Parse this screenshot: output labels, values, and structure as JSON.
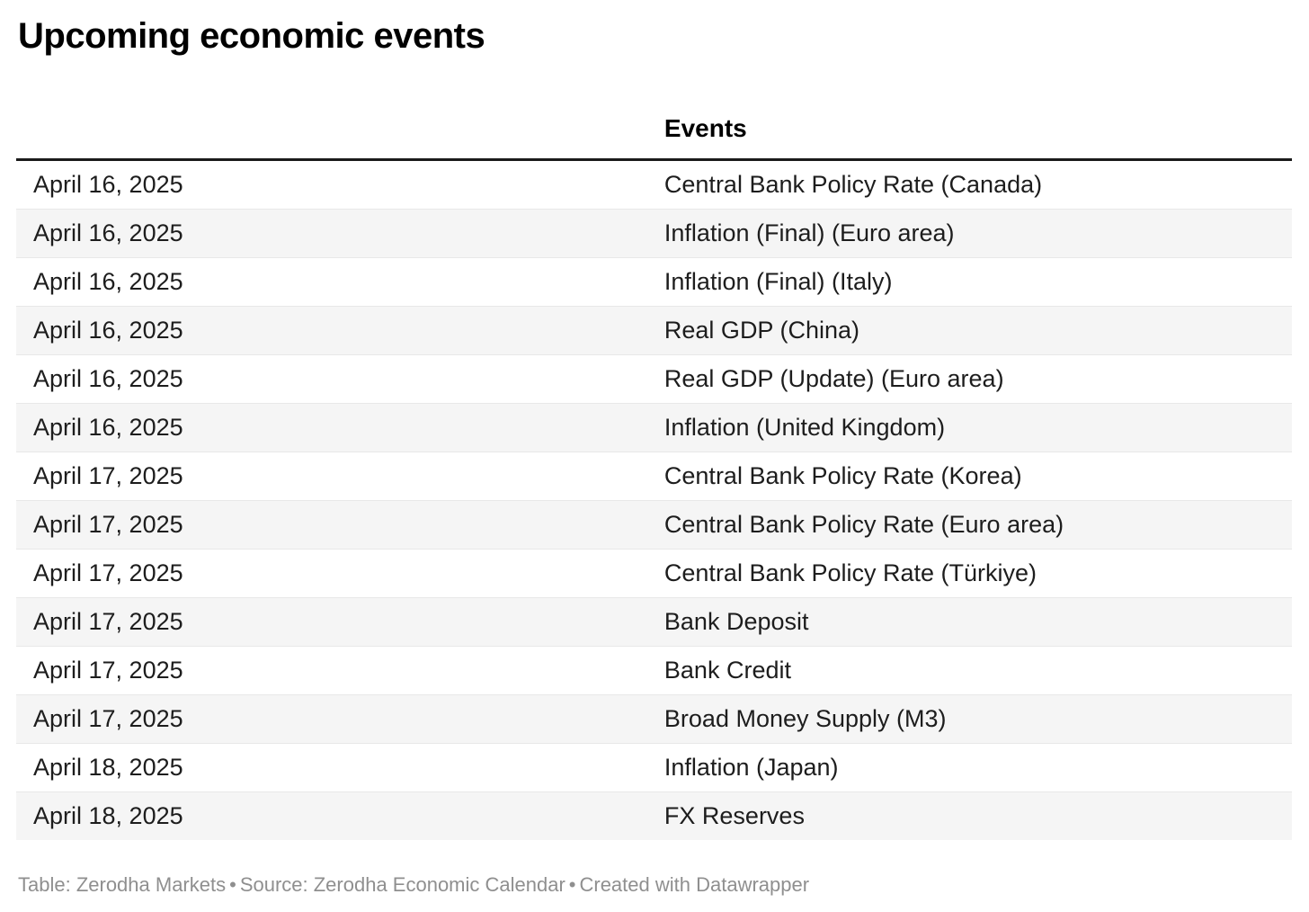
{
  "title": "Upcoming economic events",
  "table": {
    "columns": {
      "date_header": "",
      "events_header": "Events"
    },
    "rows": [
      {
        "date": "April 16, 2025",
        "event": "Central Bank Policy Rate (Canada)"
      },
      {
        "date": "April 16, 2025",
        "event": "Inflation (Final) (Euro area)"
      },
      {
        "date": "April 16, 2025",
        "event": "Inflation (Final) (Italy)"
      },
      {
        "date": "April 16, 2025",
        "event": "Real GDP (China)"
      },
      {
        "date": "April 16, 2025",
        "event": "Real GDP (Update) (Euro area)"
      },
      {
        "date": "April 16, 2025",
        "event": "Inflation (United Kingdom)"
      },
      {
        "date": "April 17, 2025",
        "event": "Central Bank Policy Rate (Korea)"
      },
      {
        "date": "April 17, 2025",
        "event": "Central Bank Policy Rate (Euro area)"
      },
      {
        "date": "April 17, 2025",
        "event": "Central Bank Policy Rate (Türkiye)"
      },
      {
        "date": "April 17, 2025",
        "event": "Bank Deposit"
      },
      {
        "date": "April 17, 2025",
        "event": "Bank Credit"
      },
      {
        "date": "April 17, 2025",
        "event": "Broad Money Supply (M3)"
      },
      {
        "date": "April 18, 2025",
        "event": "Inflation (Japan)"
      },
      {
        "date": "April 18, 2025",
        "event": "FX Reserves"
      }
    ]
  },
  "footer": {
    "byline": "Table: Zerodha Markets",
    "source": "Source: Zerodha Economic Calendar",
    "credit": "Created with Datawrapper",
    "separator": "•"
  },
  "colors": {
    "header_border": "#1a1a1a",
    "row_alt_background": "#f5f5f5",
    "row_divider": "#e8e8e8",
    "footer_text": "#8f8f8f"
  }
}
